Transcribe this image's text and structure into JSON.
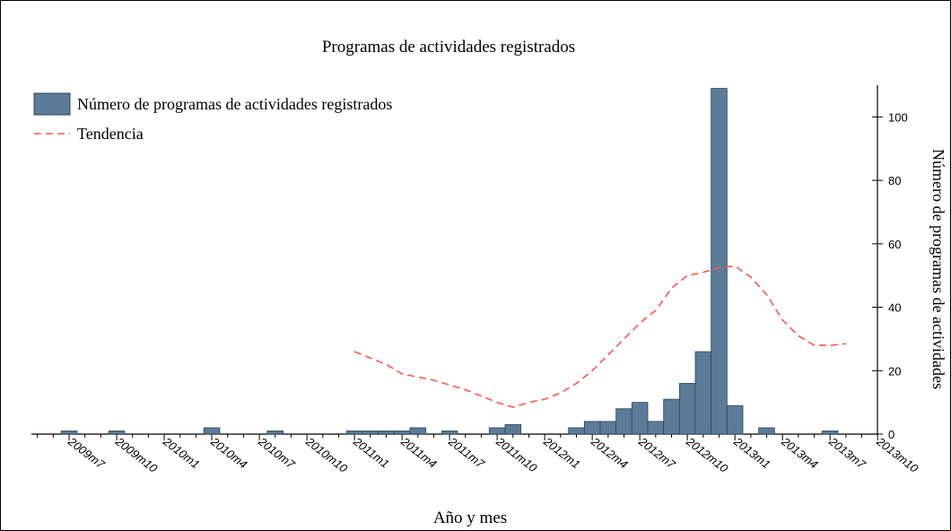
{
  "chart_data": {
    "type": "bar",
    "title": "Programas de actividades registrados",
    "x_label": "Año y mes",
    "y_label": "Número de programas de actividades",
    "categories": [
      null,
      null,
      "2009m7",
      null,
      null,
      "2009m10",
      null,
      null,
      "2010m1",
      null,
      null,
      "2010m4",
      null,
      null,
      "2010m7",
      null,
      null,
      "2010m10",
      null,
      null,
      "2011m1",
      null,
      null,
      "2011m4",
      null,
      null,
      "2011m7",
      null,
      null,
      "2011m10",
      null,
      null,
      "2012m1",
      null,
      null,
      "2012m4",
      null,
      null,
      "2012m7",
      null,
      null,
      "2012m10",
      null,
      null,
      "2013m1",
      null,
      null,
      "2013m4",
      null,
      null,
      "2013m7",
      null,
      null,
      "2013m10"
    ],
    "series": [
      {
        "name": "Número de programas de actividades registrados",
        "type": "bar",
        "color": "#5b7b98",
        "values": [
          0,
          0,
          1,
          0,
          0,
          1,
          0,
          0,
          0,
          0,
          0,
          2,
          0,
          0,
          0,
          1,
          0,
          0,
          0,
          0,
          1,
          1,
          1,
          1,
          2,
          0,
          1,
          0,
          0,
          2,
          3,
          0,
          0,
          0,
          2,
          4,
          4,
          8,
          10,
          4,
          11,
          16,
          26,
          109,
          9,
          0,
          2,
          0,
          0,
          0,
          1,
          0,
          0,
          0
        ]
      },
      {
        "name": "Tendencia",
        "type": "line",
        "color": "#ff5555",
        "dashed": true,
        "values": [
          null,
          null,
          null,
          null,
          null,
          null,
          null,
          null,
          null,
          null,
          null,
          null,
          null,
          null,
          null,
          null,
          null,
          null,
          null,
          null,
          26,
          24,
          22,
          19,
          18,
          17,
          15.5,
          14,
          12,
          10,
          8.5,
          10,
          11,
          13,
          16,
          20,
          25,
          30,
          35,
          39,
          46,
          50,
          51,
          52.5,
          53,
          49.5,
          44,
          36,
          31,
          28,
          28,
          28.5,
          null,
          null
        ]
      }
    ],
    "ylim": [
      0,
      110
    ],
    "yticks": [
      0,
      20,
      40,
      60,
      80,
      100
    ],
    "y_axis_side": "right",
    "legend": "upper left"
  }
}
